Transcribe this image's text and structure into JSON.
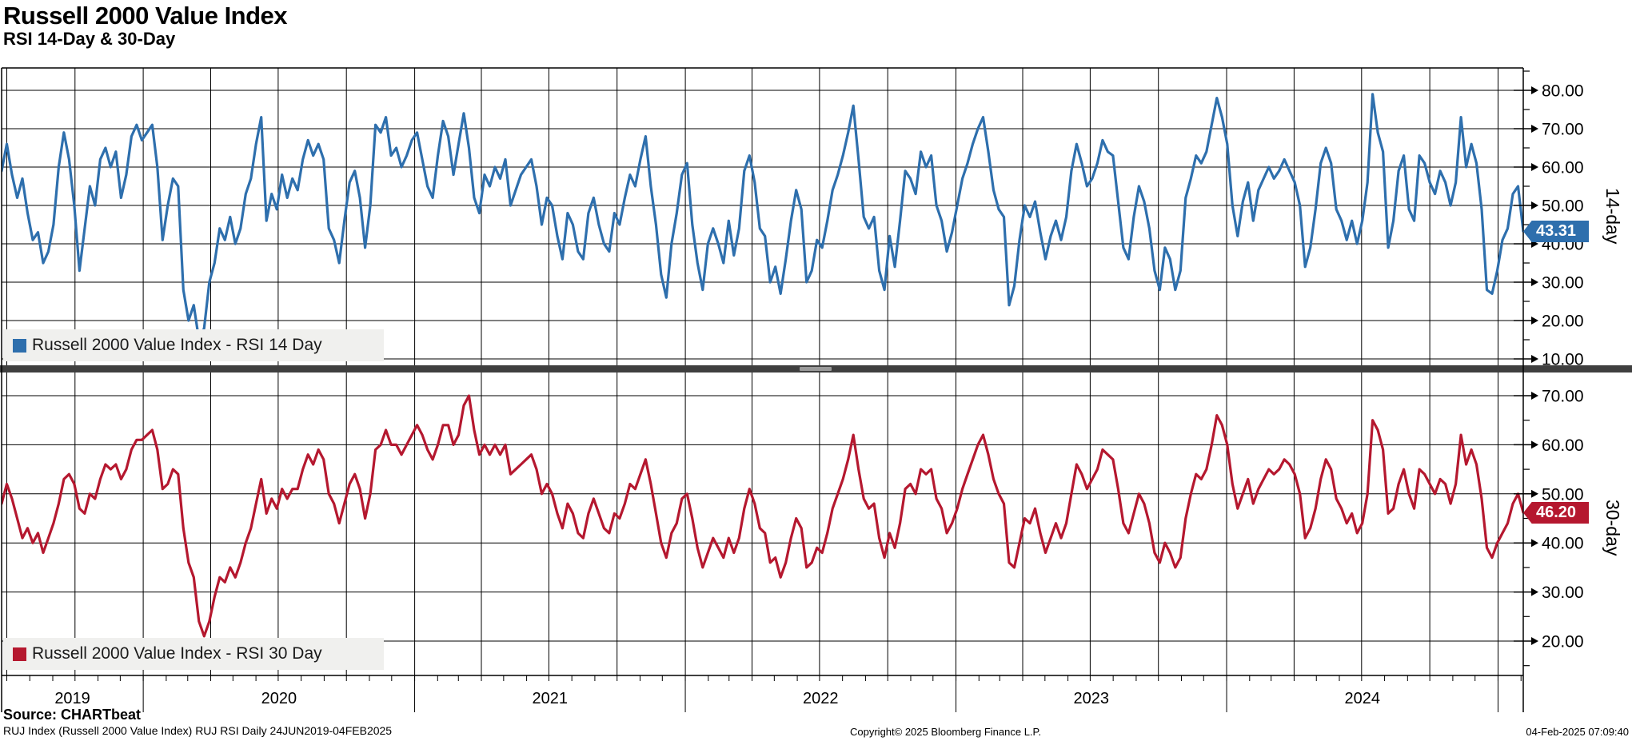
{
  "header": {
    "title": "Russell 2000 Value Index",
    "subtitle": "RSI 14-Day & 30-Day"
  },
  "panels": [
    {
      "id": "rsi14",
      "legend_label": "Russell 2000 Value Index - RSI 14 Day",
      "axis_title": "14-day",
      "last_value_label": "43.31",
      "color": "#2e6fad",
      "yticks": [
        80,
        70,
        60,
        50,
        40,
        30,
        20,
        10
      ]
    },
    {
      "id": "rsi30",
      "legend_label": "Russell 2000 Value Index - RSI 30 Day",
      "axis_title": "30-day",
      "last_value_label": "46.20",
      "color": "#b5182f",
      "yticks": [
        70,
        60,
        50,
        40,
        30,
        20
      ]
    }
  ],
  "x_axis": {
    "year_labels": [
      "2019",
      "2020",
      "2021",
      "2022",
      "2023",
      "2024"
    ],
    "start_date": "2019-06-24",
    "end_date": "2025-02-04"
  },
  "footer": {
    "source": "Source: CHARTbeat",
    "description": "RUJ Index (Russell 2000 Value Index) RUJ RSI  Daily 24JUN2019-04FEB2025",
    "copyright": "Copyright© 2025 Bloomberg Finance L.P.",
    "timestamp": "04-Feb-2025 07:09:40"
  },
  "chart_data": [
    {
      "type": "line",
      "name": "Russell 2000 Value Index - RSI 14 Day",
      "panel": "14-day",
      "color": "#2e6fad",
      "x_start": "2019-06-24",
      "x_end": "2025-02-04",
      "sampling": "weekly samples approximated from daily RSI series",
      "ylim": [
        7.5,
        85.8
      ],
      "yticks": [
        10,
        20,
        30,
        40,
        50,
        60,
        70,
        80
      ],
      "grid": true,
      "legend_position": "bottom-left",
      "last_value": 43.31,
      "values": [
        59,
        66,
        58,
        52,
        57,
        48,
        41,
        43,
        35,
        38,
        45,
        60,
        69,
        62,
        50,
        33,
        44,
        55,
        50,
        62,
        65,
        60,
        64,
        52,
        58,
        68,
        71,
        67,
        69,
        71,
        60,
        41,
        50,
        57,
        55,
        28,
        20,
        24,
        15,
        18,
        30,
        35,
        44,
        41,
        47,
        40,
        44,
        53,
        57,
        66,
        73,
        46,
        53,
        49,
        58,
        52,
        57,
        54,
        62,
        67,
        63,
        66,
        62,
        44,
        41,
        35,
        46,
        56,
        59,
        52,
        39,
        50,
        71,
        69,
        73,
        63,
        65,
        60,
        63,
        67,
        69,
        62,
        55,
        52,
        63,
        72,
        68,
        58,
        66,
        74,
        65,
        52,
        48,
        58,
        55,
        60,
        57,
        62,
        50,
        54,
        58,
        60,
        62,
        55,
        45,
        52,
        50,
        42,
        36,
        48,
        45,
        38,
        36,
        48,
        52,
        45,
        40,
        38,
        48,
        45,
        52,
        58,
        55,
        62,
        68,
        55,
        45,
        32,
        26,
        40,
        48,
        58,
        61,
        45,
        35,
        28,
        40,
        44,
        40,
        35,
        46,
        37,
        44,
        59,
        63,
        56,
        44,
        42,
        30,
        34,
        27,
        36,
        46,
        54,
        49,
        30,
        33,
        41,
        39,
        46,
        54,
        58,
        63,
        69,
        76,
        62,
        47,
        44,
        47,
        33,
        28,
        42,
        34,
        46,
        59,
        57,
        53,
        64,
        60,
        63,
        50,
        46,
        38,
        43,
        50,
        57,
        61,
        66,
        70,
        73,
        64,
        54,
        49,
        47,
        24,
        29,
        41,
        50,
        47,
        51,
        43,
        36,
        42,
        46,
        41,
        47,
        59,
        66,
        61,
        55,
        57,
        61,
        67,
        64,
        63,
        51,
        39,
        36,
        47,
        55,
        51,
        44,
        33,
        28,
        39,
        36,
        28,
        33,
        52,
        57,
        63,
        61,
        64,
        71,
        78,
        73,
        66,
        50,
        42,
        51,
        56,
        46,
        54,
        57,
        60,
        57,
        59,
        62,
        59,
        56,
        50,
        34,
        39,
        49,
        61,
        65,
        61,
        49,
        46,
        41,
        46,
        40,
        46,
        56,
        79,
        69,
        64,
        39,
        46,
        59,
        63,
        49,
        46,
        63,
        61,
        56,
        53,
        59,
        56,
        50,
        56,
        73,
        60,
        66,
        61,
        49,
        28,
        27,
        33,
        41,
        44,
        53,
        55,
        43.31
      ]
    },
    {
      "type": "line",
      "name": "Russell 2000 Value Index - RSI 30 Day",
      "panel": "30-day",
      "color": "#b5182f",
      "x_start": "2019-06-24",
      "x_end": "2025-02-04",
      "sampling": "weekly samples approximated from daily RSI series",
      "ylim": [
        13.0,
        74.7
      ],
      "yticks": [
        20,
        30,
        40,
        50,
        60,
        70
      ],
      "grid": true,
      "legend_position": "bottom-left",
      "last_value": 46.2,
      "values": [
        48,
        52,
        49,
        45,
        41,
        43,
        40,
        42,
        38,
        41,
        44,
        48,
        53,
        54,
        52,
        47,
        46,
        50,
        49,
        53,
        56,
        55,
        56,
        53,
        55,
        59,
        61,
        61,
        62,
        63,
        59,
        51,
        52,
        55,
        54,
        43,
        36,
        33,
        24,
        21,
        24,
        29,
        33,
        32,
        35,
        33,
        36,
        40,
        43,
        48,
        53,
        46,
        49,
        47,
        51,
        49,
        51,
        51,
        55,
        58,
        56,
        59,
        57,
        50,
        48,
        44,
        48,
        52,
        54,
        51,
        45,
        50,
        59,
        60,
        63,
        60,
        60,
        58,
        60,
        62,
        64,
        62,
        59,
        57,
        60,
        64,
        64,
        60,
        62,
        68,
        70,
        63,
        58,
        60,
        58,
        60,
        58,
        60,
        54,
        55,
        56,
        57,
        58,
        55,
        50,
        52,
        50,
        46,
        43,
        48,
        46,
        42,
        41,
        46,
        49,
        46,
        43,
        42,
        46,
        45,
        48,
        52,
        51,
        54,
        57,
        52,
        46,
        40,
        37,
        42,
        44,
        49,
        50,
        45,
        39,
        35,
        38,
        41,
        39,
        37,
        41,
        38,
        41,
        47,
        51,
        48,
        43,
        42,
        36,
        37,
        33,
        36,
        41,
        45,
        43,
        35,
        36,
        39,
        38,
        42,
        47,
        50,
        53,
        57,
        62,
        55,
        49,
        47,
        48,
        41,
        37,
        42,
        39,
        44,
        51,
        52,
        50,
        55,
        54,
        55,
        49,
        47,
        42,
        44,
        47,
        51,
        54,
        57,
        60,
        62,
        58,
        53,
        50,
        48,
        36,
        35,
        40,
        45,
        44,
        47,
        42,
        38,
        41,
        44,
        41,
        44,
        50,
        56,
        54,
        51,
        53,
        55,
        59,
        58,
        57,
        51,
        44,
        42,
        46,
        50,
        48,
        44,
        38,
        36,
        40,
        38,
        35,
        37,
        45,
        50,
        54,
        53,
        55,
        60,
        66,
        64,
        60,
        52,
        47,
        50,
        53,
        48,
        51,
        53,
        55,
        54,
        55,
        57,
        56,
        54,
        50,
        41,
        43,
        47,
        53,
        57,
        55,
        49,
        47,
        44,
        46,
        42,
        44,
        50,
        65,
        63,
        59,
        46,
        47,
        52,
        55,
        50,
        47,
        55,
        54,
        52,
        50,
        53,
        52,
        48,
        52,
        62,
        56,
        59,
        56,
        49,
        39,
        37,
        40,
        42,
        44,
        48,
        50,
        46.2
      ]
    }
  ]
}
